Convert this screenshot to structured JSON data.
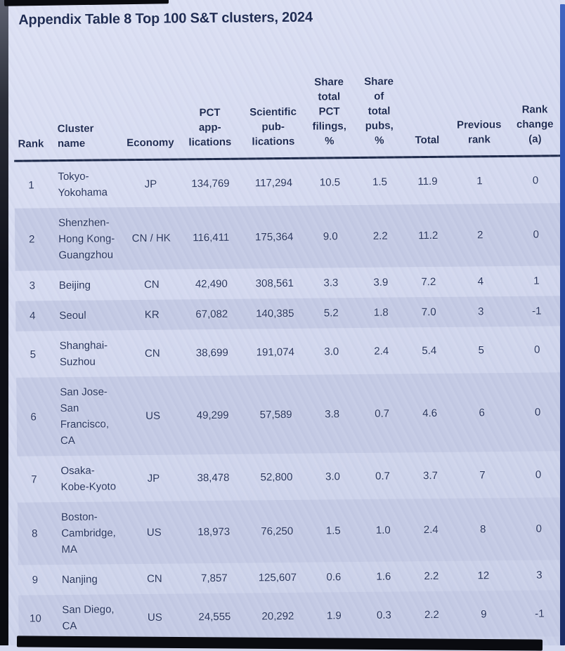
{
  "page": {
    "title": "Appendix Table 8 Top 100 S&T clusters, 2024"
  },
  "table": {
    "columns": [
      {
        "id": "rank",
        "label": "Rank",
        "align": "center"
      },
      {
        "id": "cluster",
        "label": "Cluster\nname",
        "align": "left"
      },
      {
        "id": "economy",
        "label": "Economy",
        "align": "center"
      },
      {
        "id": "pct_app",
        "label": "PCT\napp-\nlications",
        "align": "center"
      },
      {
        "id": "sci_pub",
        "label": "Scientific\npub-\nlications",
        "align": "center"
      },
      {
        "id": "share_pct",
        "label": "Share\ntotal\nPCT\nfilings,\n%",
        "align": "center"
      },
      {
        "id": "share_pubs",
        "label": "Share\nof\ntotal\npubs,\n%",
        "align": "center"
      },
      {
        "id": "total",
        "label": "Total",
        "align": "center"
      },
      {
        "id": "prev_rank",
        "label": "Previous\nrank",
        "align": "center"
      },
      {
        "id": "rank_change",
        "label": "Rank\nchange\n(a)",
        "align": "center"
      }
    ],
    "rows": [
      {
        "rank": "1",
        "cluster": "Tokyo-\nYokohama",
        "economy": "JP",
        "pct_app": "134,769",
        "sci_pub": "117,294",
        "share_pct": "10.5",
        "share_pubs": "1.5",
        "total": "11.9",
        "prev_rank": "1",
        "rank_change": "0"
      },
      {
        "rank": "2",
        "cluster": "Shenzhen-\nHong Kong-\nGuangzhou",
        "economy": "CN / HK",
        "pct_app": "116,411",
        "sci_pub": "175,364",
        "share_pct": "9.0",
        "share_pubs": "2.2",
        "total": "11.2",
        "prev_rank": "2",
        "rank_change": "0"
      },
      {
        "rank": "3",
        "cluster": "Beijing",
        "economy": "CN",
        "pct_app": "42,490",
        "sci_pub": "308,561",
        "share_pct": "3.3",
        "share_pubs": "3.9",
        "total": "7.2",
        "prev_rank": "4",
        "rank_change": "1"
      },
      {
        "rank": "4",
        "cluster": "Seoul",
        "economy": "KR",
        "pct_app": "67,082",
        "sci_pub": "140,385",
        "share_pct": "5.2",
        "share_pubs": "1.8",
        "total": "7.0",
        "prev_rank": "3",
        "rank_change": "-1"
      },
      {
        "rank": "5",
        "cluster": "Shanghai-\nSuzhou",
        "economy": "CN",
        "pct_app": "38,699",
        "sci_pub": "191,074",
        "share_pct": "3.0",
        "share_pubs": "2.4",
        "total": "5.4",
        "prev_rank": "5",
        "rank_change": "0"
      },
      {
        "rank": "6",
        "cluster": "San Jose-\nSan\nFrancisco,\nCA",
        "economy": "US",
        "pct_app": "49,299",
        "sci_pub": "57,589",
        "share_pct": "3.8",
        "share_pubs": "0.7",
        "total": "4.6",
        "prev_rank": "6",
        "rank_change": "0"
      },
      {
        "rank": "7",
        "cluster": "Osaka-\nKobe-Kyoto",
        "economy": "JP",
        "pct_app": "38,478",
        "sci_pub": "52,800",
        "share_pct": "3.0",
        "share_pubs": "0.7",
        "total": "3.7",
        "prev_rank": "7",
        "rank_change": "0"
      },
      {
        "rank": "8",
        "cluster": "Boston-\nCambridge,\nMA",
        "economy": "US",
        "pct_app": "18,973",
        "sci_pub": "76,250",
        "share_pct": "1.5",
        "share_pubs": "1.0",
        "total": "2.4",
        "prev_rank": "8",
        "rank_change": "0"
      },
      {
        "rank": "9",
        "cluster": "Nanjing",
        "economy": "CN",
        "pct_app": "7,857",
        "sci_pub": "125,607",
        "share_pct": "0.6",
        "share_pubs": "1.6",
        "total": "2.2",
        "prev_rank": "12",
        "rank_change": "3"
      },
      {
        "rank": "10",
        "cluster": "San Diego,\nCA",
        "economy": "US",
        "pct_app": "24,555",
        "sci_pub": "20,292",
        "share_pct": "1.9",
        "share_pubs": "0.3",
        "total": "2.2",
        "prev_rank": "9",
        "rank_change": "-1"
      }
    ]
  },
  "colors": {
    "background": "#d4d9ef",
    "row_shade": "#c4cae4",
    "text": "#26335c",
    "heading": "#1d2a52",
    "rule": "#1c2848",
    "edge_dark": "#0a0b10",
    "edge_blue": "#2e52b0"
  }
}
